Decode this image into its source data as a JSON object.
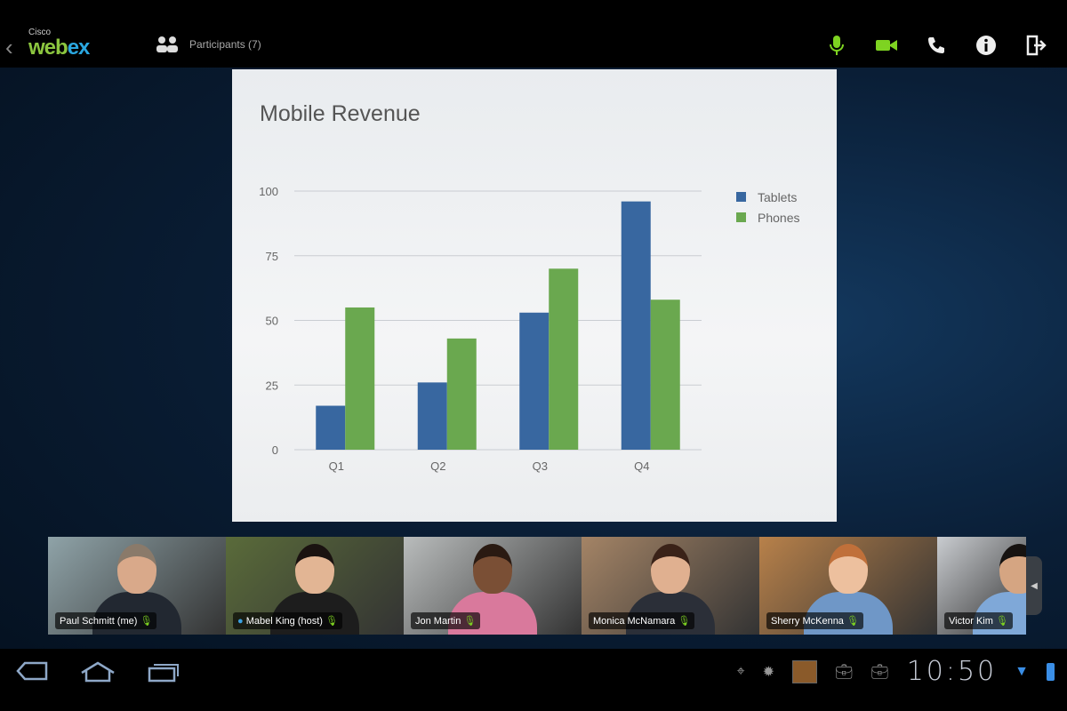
{
  "header": {
    "logo_small": "Cisco",
    "logo_main_a": "web",
    "logo_main_b": "ex",
    "participants_label": "Participants (7)"
  },
  "toolbar": {
    "icons": [
      "microphone-icon",
      "video-camera-icon",
      "phone-icon",
      "info-icon",
      "leave-icon"
    ],
    "active_color": "#7ed321"
  },
  "slide": {
    "title": "Mobile Revenue"
  },
  "chart_data": {
    "type": "bar",
    "title": "Mobile Revenue",
    "categories": [
      "Q1",
      "Q2",
      "Q3",
      "Q4"
    ],
    "series": [
      {
        "name": "Tablets",
        "color": "#3867a0",
        "values": [
          17,
          26,
          53,
          96
        ]
      },
      {
        "name": "Phones",
        "color": "#6aa84f",
        "values": [
          55,
          43,
          70,
          58
        ]
      }
    ],
    "yticks": [
      0,
      25,
      50,
      75,
      100
    ],
    "ylim": [
      0,
      100
    ],
    "grid": true,
    "legend": "top-right"
  },
  "participants": [
    {
      "name": "Paul Schmitt (me)",
      "bg": "#8fa3a8",
      "skin": "#d9a98a",
      "shirt": "#222831",
      "hair": "#8a7a6a"
    },
    {
      "name": "Mabel King (host)",
      "bg": "#5a6b3a",
      "skin": "#e2b594",
      "shirt": "#1d1d1d",
      "hair": "#1a1210",
      "globe": true
    },
    {
      "name": "Jon Martin",
      "bg": "#b9bcbc",
      "skin": "#7a4f35",
      "shirt": "#d9799c",
      "hair": "#2a1a12"
    },
    {
      "name": "Monica McNamara",
      "bg": "#a48466",
      "skin": "#e0b090",
      "shirt": "#2b2f38",
      "hair": "#3a2218"
    },
    {
      "name": "Sherry McKenna",
      "bg": "#b8814a",
      "skin": "#edc09e",
      "shirt": "#6f97c7",
      "hair": "#c0703a"
    },
    {
      "name": "Victor Kim",
      "bg": "#c9ccd0",
      "skin": "#d5a582",
      "shirt": "#7fa8d8",
      "hair": "#161210"
    }
  ],
  "system": {
    "time": "10:50"
  }
}
